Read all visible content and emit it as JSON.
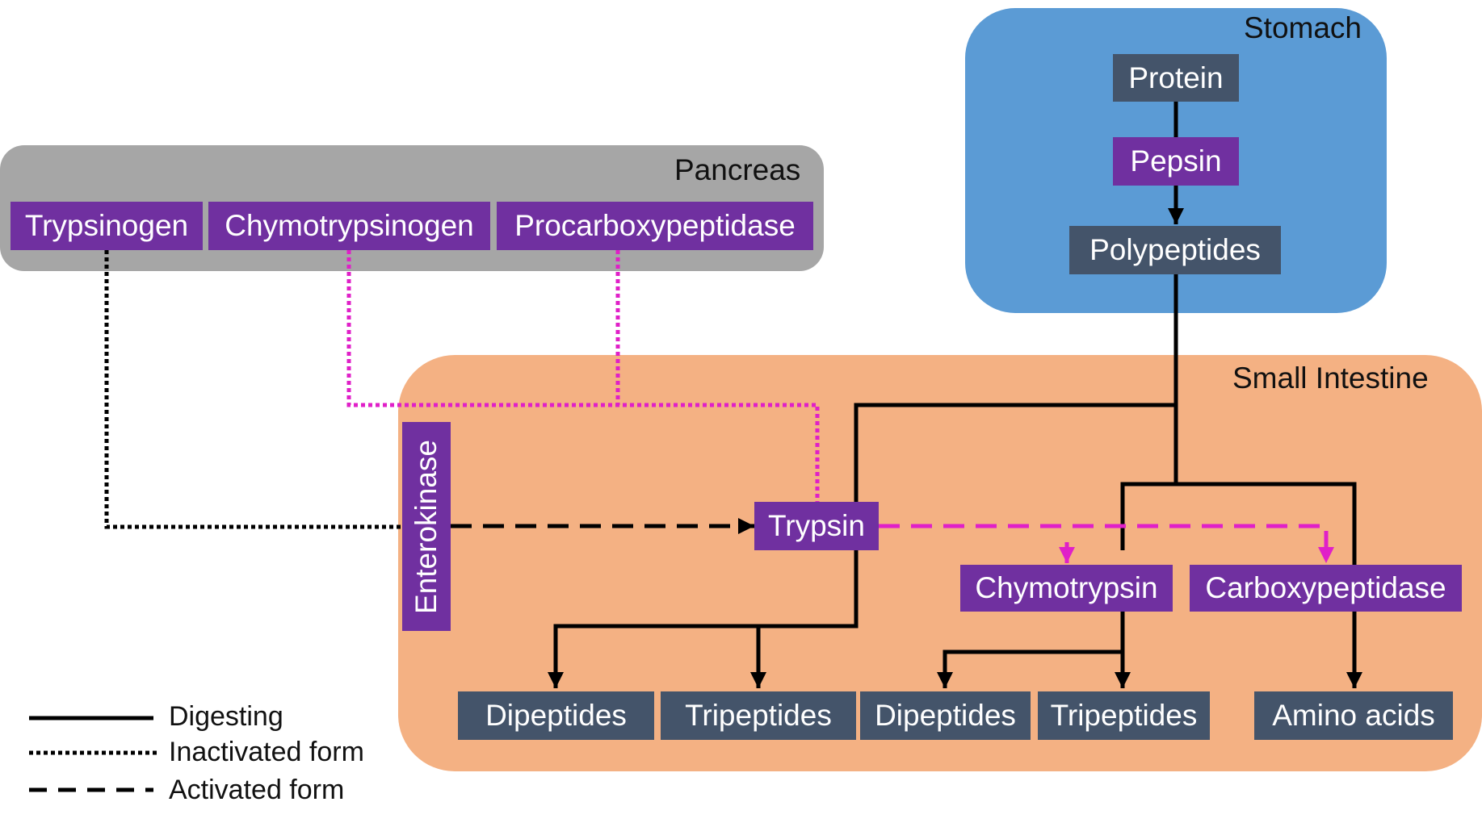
{
  "colors": {
    "stomach_region": "#5b9bd5",
    "pancreas_region": "#a6a6a6",
    "small_intestine_region": "#f4b183",
    "enzyme_box": "#7030a0",
    "substrate_box": "#44546a",
    "digesting_line": "#000000",
    "activation_line": "#e020c8"
  },
  "regions": {
    "stomach": "Stomach",
    "pancreas": "Pancreas",
    "small_intestine": "Small Intestine"
  },
  "nodes": {
    "protein": "Protein",
    "pepsin": "Pepsin",
    "polypeptides": "Polypeptides",
    "trypsinogen": "Trypsinogen",
    "chymotrypsinogen": "Chymotrypsinogen",
    "procarboxypeptidase": "Procarboxypeptidase",
    "enterokinase": "Enterokinase",
    "trypsin": "Trypsin",
    "chymotrypsin": "Chymotrypsin",
    "carboxypeptidase": "Carboxypeptidase",
    "dipeptides_1": "Dipeptides",
    "tripeptides_1": "Tripeptides",
    "dipeptides_2": "Dipeptides",
    "tripeptides_2": "Tripeptides",
    "amino_acids": "Amino acids"
  },
  "legend": {
    "digesting": "Digesting",
    "inactivated": "Inactivated form",
    "activated": "Activated form"
  }
}
